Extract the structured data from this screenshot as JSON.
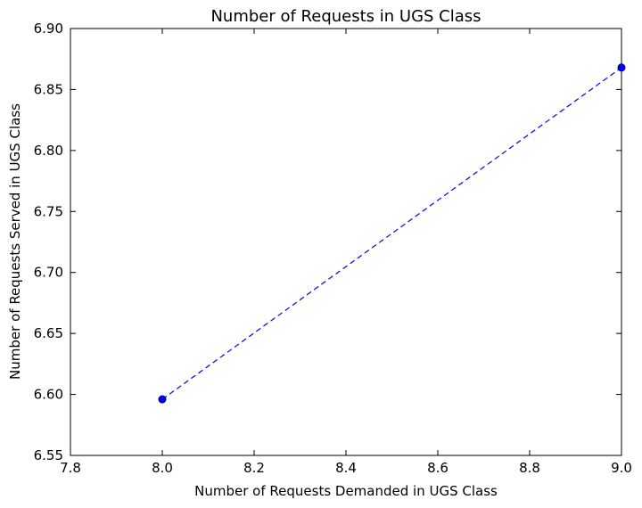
{
  "chart_data": {
    "type": "line",
    "title": "Number of Requests in UGS Class",
    "xlabel": "Number of Requests Demanded in UGS Class",
    "ylabel": "Number of Requests Served in UGS Class",
    "xlim": [
      7.8,
      9.0
    ],
    "ylim": [
      6.55,
      6.9
    ],
    "x_ticks": [
      "7.8",
      "8.0",
      "8.2",
      "8.4",
      "8.6",
      "8.8",
      "9.0"
    ],
    "y_ticks": [
      "6.55",
      "6.60",
      "6.65",
      "6.70",
      "6.75",
      "6.80",
      "6.85",
      "6.90"
    ],
    "grid": false,
    "series": [
      {
        "x": [
          8.0,
          9.0
        ],
        "y": [
          6.596,
          6.868
        ],
        "color": "#0000ff",
        "line_style": "dashed",
        "marker": "circle"
      }
    ]
  }
}
